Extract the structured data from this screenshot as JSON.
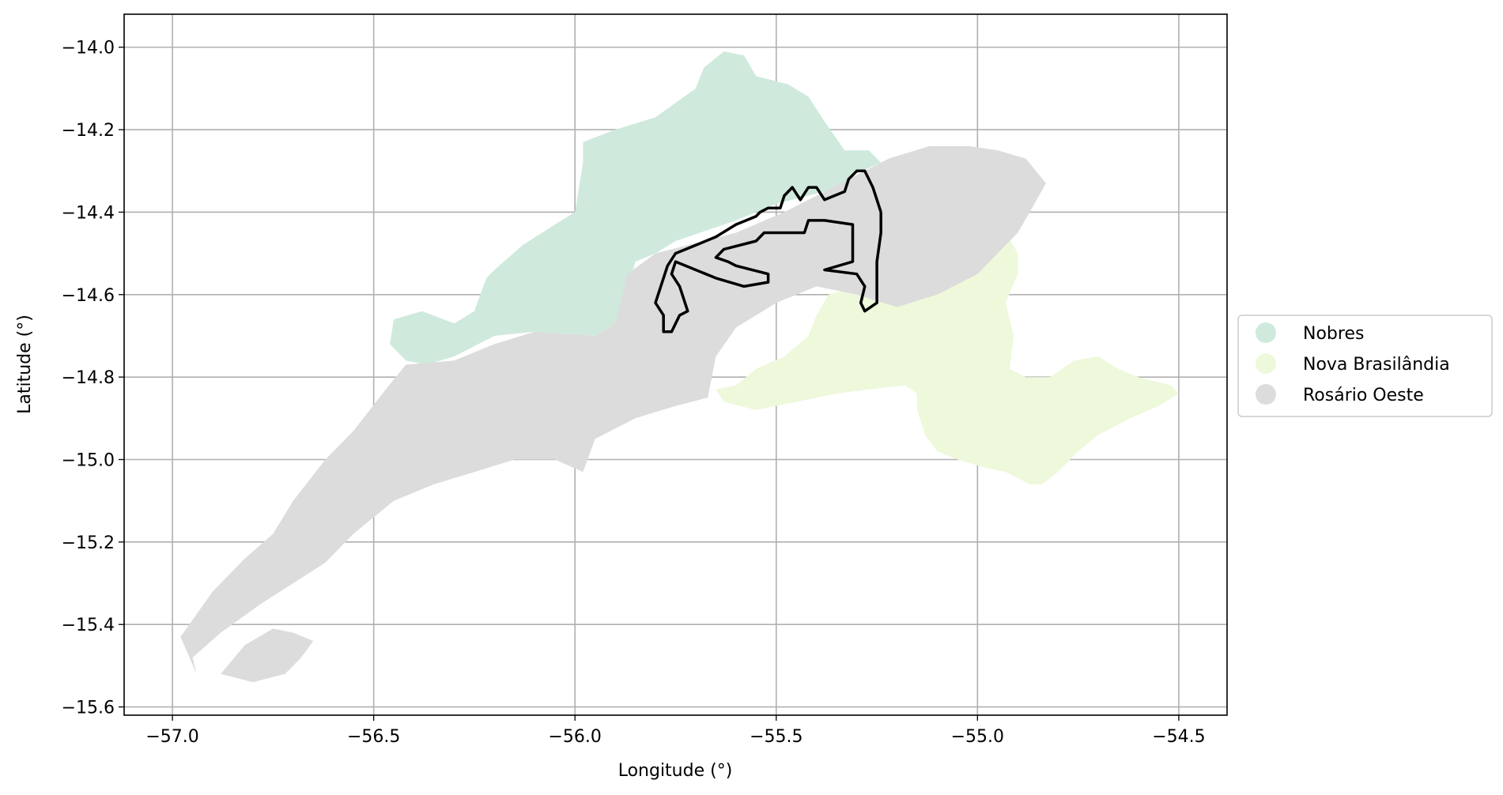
{
  "chart_data": {
    "type": "map",
    "title": "",
    "xlabel": "Longitude (°)",
    "ylabel": "Latitude (°)",
    "xlim": [
      -57.12,
      -54.38
    ],
    "ylim": [
      -15.62,
      -13.92
    ],
    "xticks": [
      -57.0,
      -56.5,
      -56.0,
      -55.5,
      -55.0,
      -54.5
    ],
    "yticks": [
      -14.0,
      -14.2,
      -14.4,
      -14.6,
      -14.8,
      -15.0,
      -15.2,
      -15.4,
      -15.6
    ],
    "grid": true,
    "legend_position": "right",
    "series": [
      {
        "name": "Nobres",
        "color": "#cfeadd",
        "polygons": [
          [
            [
              -56.45,
              -14.66
            ],
            [
              -56.38,
              -14.64
            ],
            [
              -56.3,
              -14.67
            ],
            [
              -56.25,
              -14.64
            ],
            [
              -56.22,
              -14.56
            ],
            [
              -56.2,
              -14.54
            ],
            [
              -56.13,
              -14.48
            ],
            [
              -56.05,
              -14.43
            ],
            [
              -56.0,
              -14.4
            ],
            [
              -55.98,
              -14.28
            ],
            [
              -55.98,
              -14.23
            ],
            [
              -55.9,
              -14.2
            ],
            [
              -55.8,
              -14.17
            ],
            [
              -55.7,
              -14.1
            ],
            [
              -55.68,
              -14.05
            ],
            [
              -55.63,
              -14.01
            ],
            [
              -55.58,
              -14.02
            ],
            [
              -55.55,
              -14.07
            ],
            [
              -55.47,
              -14.09
            ],
            [
              -55.42,
              -14.12
            ],
            [
              -55.38,
              -14.18
            ],
            [
              -55.33,
              -14.25
            ],
            [
              -55.27,
              -14.25
            ],
            [
              -55.24,
              -14.28
            ],
            [
              -55.31,
              -14.31
            ],
            [
              -55.25,
              -14.34
            ],
            [
              -55.26,
              -14.36
            ],
            [
              -55.34,
              -14.38
            ],
            [
              -55.38,
              -14.35
            ],
            [
              -55.5,
              -14.38
            ],
            [
              -55.6,
              -14.42
            ],
            [
              -55.75,
              -14.47
            ],
            [
              -55.8,
              -14.5
            ],
            [
              -55.85,
              -14.52
            ],
            [
              -55.88,
              -14.62
            ],
            [
              -55.9,
              -14.67
            ],
            [
              -55.95,
              -14.7
            ],
            [
              -56.1,
              -14.69
            ],
            [
              -56.2,
              -14.7
            ],
            [
              -56.3,
              -14.75
            ],
            [
              -56.37,
              -14.77
            ],
            [
              -56.42,
              -14.76
            ],
            [
              -56.46,
              -14.72
            ]
          ]
        ]
      },
      {
        "name": "Nova Brasilândia",
        "color": "#eef8db",
        "polygons": [
          [
            [
              -55.6,
              -14.82
            ],
            [
              -55.55,
              -14.78
            ],
            [
              -55.48,
              -14.75
            ],
            [
              -55.42,
              -14.7
            ],
            [
              -55.4,
              -14.65
            ],
            [
              -55.37,
              -14.6
            ],
            [
              -55.3,
              -14.58
            ],
            [
              -55.2,
              -14.63
            ],
            [
              -55.12,
              -14.6
            ],
            [
              -55.08,
              -14.55
            ],
            [
              -55.0,
              -14.52
            ],
            [
              -54.97,
              -14.48
            ],
            [
              -54.93,
              -14.45
            ],
            [
              -54.9,
              -14.5
            ],
            [
              -54.9,
              -14.55
            ],
            [
              -54.93,
              -14.62
            ],
            [
              -54.91,
              -14.7
            ],
            [
              -54.92,
              -14.78
            ],
            [
              -54.88,
              -14.8
            ],
            [
              -54.82,
              -14.8
            ],
            [
              -54.76,
              -14.76
            ],
            [
              -54.7,
              -14.75
            ],
            [
              -54.65,
              -14.78
            ],
            [
              -54.6,
              -14.8
            ],
            [
              -54.52,
              -14.82
            ],
            [
              -54.5,
              -14.84
            ],
            [
              -54.55,
              -14.87
            ],
            [
              -54.62,
              -14.9
            ],
            [
              -54.7,
              -14.94
            ],
            [
              -54.75,
              -14.98
            ],
            [
              -54.8,
              -15.03
            ],
            [
              -54.84,
              -15.06
            ],
            [
              -54.87,
              -15.06
            ],
            [
              -54.93,
              -15.03
            ],
            [
              -54.98,
              -15.02
            ],
            [
              -55.05,
              -15.0
            ],
            [
              -55.1,
              -14.98
            ],
            [
              -55.13,
              -14.94
            ],
            [
              -55.15,
              -14.88
            ],
            [
              -55.15,
              -14.84
            ],
            [
              -55.18,
              -14.82
            ],
            [
              -55.27,
              -14.83
            ],
            [
              -55.35,
              -14.84
            ],
            [
              -55.45,
              -14.86
            ],
            [
              -55.55,
              -14.88
            ],
            [
              -55.63,
              -14.86
            ],
            [
              -55.65,
              -14.83
            ]
          ]
        ]
      },
      {
        "name": "Rosário Oeste",
        "color": "#dcdcdc",
        "polygons": [
          [
            [
              -56.98,
              -15.43
            ],
            [
              -56.9,
              -15.32
            ],
            [
              -56.82,
              -15.24
            ],
            [
              -56.75,
              -15.18
            ],
            [
              -56.7,
              -15.1
            ],
            [
              -56.62,
              -15.0
            ],
            [
              -56.55,
              -14.93
            ],
            [
              -56.47,
              -14.83
            ],
            [
              -56.42,
              -14.77
            ],
            [
              -56.3,
              -14.76
            ],
            [
              -56.2,
              -14.72
            ],
            [
              -56.1,
              -14.69
            ],
            [
              -55.95,
              -14.7
            ],
            [
              -55.9,
              -14.67
            ],
            [
              -55.87,
              -14.55
            ],
            [
              -55.8,
              -14.5
            ],
            [
              -55.6,
              -14.45
            ],
            [
              -55.48,
              -14.4
            ],
            [
              -55.38,
              -14.35
            ],
            [
              -55.3,
              -14.31
            ],
            [
              -55.22,
              -14.27
            ],
            [
              -55.12,
              -14.24
            ],
            [
              -55.02,
              -14.24
            ],
            [
              -54.95,
              -14.25
            ],
            [
              -54.88,
              -14.27
            ],
            [
              -54.83,
              -14.33
            ],
            [
              -54.87,
              -14.4
            ],
            [
              -54.9,
              -14.45
            ],
            [
              -54.95,
              -14.5
            ],
            [
              -55.0,
              -14.55
            ],
            [
              -55.1,
              -14.6
            ],
            [
              -55.2,
              -14.63
            ],
            [
              -55.3,
              -14.6
            ],
            [
              -55.4,
              -14.58
            ],
            [
              -55.5,
              -14.62
            ],
            [
              -55.6,
              -14.68
            ],
            [
              -55.65,
              -14.75
            ],
            [
              -55.67,
              -14.85
            ],
            [
              -55.75,
              -14.87
            ],
            [
              -55.85,
              -14.9
            ],
            [
              -55.95,
              -14.95
            ],
            [
              -55.98,
              -15.03
            ],
            [
              -56.05,
              -15.0
            ],
            [
              -56.15,
              -15.0
            ],
            [
              -56.25,
              -15.03
            ],
            [
              -56.35,
              -15.06
            ],
            [
              -56.45,
              -15.1
            ],
            [
              -56.55,
              -15.18
            ],
            [
              -56.62,
              -15.25
            ],
            [
              -56.7,
              -15.3
            ],
            [
              -56.78,
              -15.35
            ],
            [
              -56.88,
              -15.42
            ],
            [
              -56.95,
              -15.48
            ],
            [
              -56.94,
              -15.52
            ]
          ],
          [
            [
              -56.88,
              -15.52
            ],
            [
              -56.82,
              -15.45
            ],
            [
              -56.75,
              -15.41
            ],
            [
              -56.7,
              -15.42
            ],
            [
              -56.65,
              -15.44
            ],
            [
              -56.68,
              -15.48
            ],
            [
              -56.72,
              -15.52
            ],
            [
              -56.8,
              -15.54
            ]
          ]
        ]
      }
    ],
    "outline": [
      [
        -55.24,
        -14.4
      ],
      [
        -55.26,
        -14.34
      ],
      [
        -55.28,
        -14.3
      ],
      [
        -55.3,
        -14.3
      ],
      [
        -55.32,
        -14.32
      ],
      [
        -55.33,
        -14.35
      ],
      [
        -55.38,
        -14.37
      ],
      [
        -55.4,
        -14.34
      ],
      [
        -55.42,
        -14.34
      ],
      [
        -55.44,
        -14.37
      ],
      [
        -55.46,
        -14.34
      ],
      [
        -55.48,
        -14.36
      ],
      [
        -55.49,
        -14.39
      ],
      [
        -55.52,
        -14.39
      ],
      [
        -55.54,
        -14.4
      ],
      [
        -55.55,
        -14.41
      ],
      [
        -55.6,
        -14.43
      ],
      [
        -55.65,
        -14.46
      ],
      [
        -55.7,
        -14.48
      ],
      [
        -55.75,
        -14.5
      ],
      [
        -55.77,
        -14.53
      ],
      [
        -55.79,
        -14.59
      ],
      [
        -55.8,
        -14.62
      ],
      [
        -55.78,
        -14.65
      ],
      [
        -55.78,
        -14.69
      ],
      [
        -55.76,
        -14.69
      ],
      [
        -55.74,
        -14.65
      ],
      [
        -55.72,
        -14.64
      ],
      [
        -55.73,
        -14.61
      ],
      [
        -55.74,
        -14.58
      ],
      [
        -55.76,
        -14.55
      ],
      [
        -55.75,
        -14.52
      ],
      [
        -55.65,
        -14.56
      ],
      [
        -55.58,
        -14.58
      ],
      [
        -55.52,
        -14.57
      ],
      [
        -55.52,
        -14.55
      ],
      [
        -55.6,
        -14.53
      ],
      [
        -55.62,
        -14.52
      ],
      [
        -55.65,
        -14.51
      ],
      [
        -55.63,
        -14.49
      ],
      [
        -55.55,
        -14.47
      ],
      [
        -55.53,
        -14.45
      ],
      [
        -55.43,
        -14.45
      ],
      [
        -55.42,
        -14.42
      ],
      [
        -55.38,
        -14.42
      ],
      [
        -55.31,
        -14.43
      ],
      [
        -55.31,
        -14.52
      ],
      [
        -55.38,
        -14.54
      ],
      [
        -55.3,
        -14.55
      ],
      [
        -55.28,
        -14.58
      ],
      [
        -55.29,
        -14.62
      ],
      [
        -55.28,
        -14.64
      ],
      [
        -55.25,
        -14.62
      ],
      [
        -55.25,
        -14.52
      ],
      [
        -55.24,
        -14.45
      ],
      [
        -55.24,
        -14.4
      ]
    ]
  },
  "legend": {
    "items": [
      {
        "label": "Nobres",
        "color": "#cfeadd"
      },
      {
        "label": "Nova Brasilândia",
        "color": "#eef8db"
      },
      {
        "label": "Rosário Oeste",
        "color": "#dcdcdc"
      }
    ]
  },
  "tick_labels": {
    "x": [
      "−57.0",
      "−56.5",
      "−56.0",
      "−55.5",
      "−55.0",
      "−54.5"
    ],
    "y": [
      "−14.0",
      "−14.2",
      "−14.4",
      "−14.6",
      "−14.8",
      "−15.0",
      "−15.2",
      "−15.4",
      "−15.6"
    ]
  }
}
